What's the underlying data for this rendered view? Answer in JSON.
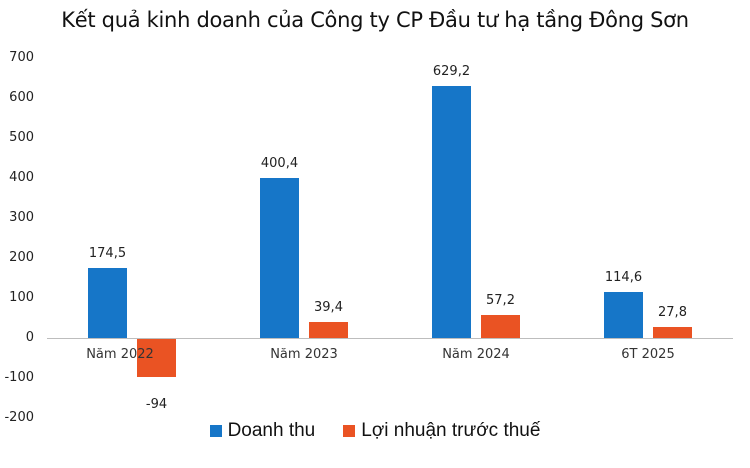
{
  "chart_data": {
    "type": "bar",
    "title": "Kết quả kinh doanh của Công ty CP Đầu tư  hạ tầng Đông Sơn",
    "categories": [
      "Năm 2022",
      "Năm 2023",
      "Năm 2024",
      "6T 2025"
    ],
    "series": [
      {
        "name": "Doanh thu",
        "color": "#1676c8",
        "values": [
          174.5,
          400.4,
          629.2,
          114.6
        ],
        "labels": [
          "174,5",
          "400,4",
          "629,2",
          "114,6"
        ]
      },
      {
        "name": "Lợi nhuận trước thuế",
        "color": "#ea5323",
        "values": [
          -94,
          39.4,
          57.2,
          27.8
        ],
        "labels": [
          "-94",
          "39,4",
          "57,2",
          "27,8"
        ]
      }
    ],
    "xlabel": "",
    "ylabel": "",
    "ylim": [
      -200,
      700
    ],
    "yticks": [
      "700",
      "600",
      "500",
      "400",
      "300",
      "200",
      "100",
      "0",
      "-100",
      "-200"
    ],
    "grid": false,
    "legend_position": "bottom"
  }
}
